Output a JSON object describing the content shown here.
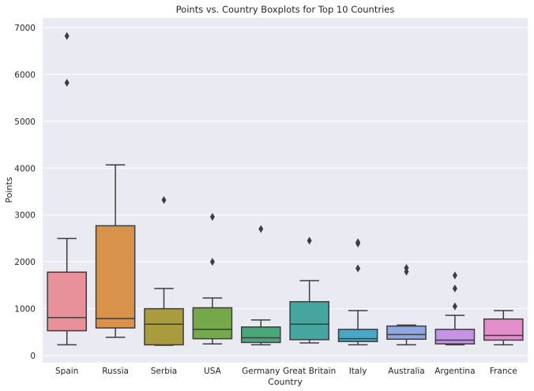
{
  "chart_data": {
    "type": "box",
    "title": "Points vs. Country Boxplots for Top 10 Countries",
    "xlabel": "Country",
    "ylabel": "Points",
    "ylim": [
      -150,
      7200
    ],
    "yticks": [
      0,
      1000,
      2000,
      3000,
      4000,
      5000,
      6000,
      7000
    ],
    "grid": true,
    "categories": [
      "Spain",
      "Russia",
      "Serbia",
      "USA",
      "Germany",
      "Great Britain",
      "Italy",
      "Australia",
      "Argentina",
      "France"
    ],
    "boxes": [
      {
        "category": "Spain",
        "whisker_low": 230,
        "q1": 530,
        "median": 810,
        "q3": 1780,
        "whisker_high": 2500,
        "outliers": [
          5820,
          6820
        ],
        "color": "#e8919b"
      },
      {
        "category": "Russia",
        "whisker_low": 390,
        "q1": 590,
        "median": 790,
        "q3": 2770,
        "whisker_high": 4070,
        "outliers": [],
        "color": "#d8924a"
      },
      {
        "category": "Serbia",
        "whisker_low": 220,
        "q1": 230,
        "median": 670,
        "q3": 1000,
        "whisker_high": 1430,
        "outliers": [
          3320
        ],
        "color": "#aa9c3e"
      },
      {
        "category": "USA",
        "whisker_low": 250,
        "q1": 360,
        "median": 560,
        "q3": 1020,
        "whisker_high": 1230,
        "outliers": [
          2000,
          2960
        ],
        "color": "#74a84b"
      },
      {
        "category": "Germany",
        "whisker_low": 230,
        "q1": 280,
        "median": 380,
        "q3": 610,
        "whisker_high": 760,
        "outliers": [
          2700
        ],
        "color": "#4aa779"
      },
      {
        "category": "Great Britain",
        "whisker_low": 270,
        "q1": 340,
        "median": 670,
        "q3": 1150,
        "whisker_high": 1600,
        "outliers": [
          2450
        ],
        "color": "#47a59f"
      },
      {
        "category": "Italy",
        "whisker_low": 230,
        "q1": 300,
        "median": 360,
        "q3": 560,
        "whisker_high": 960,
        "outliers": [
          1860,
          2390,
          2420
        ],
        "color": "#4aa7c4"
      },
      {
        "category": "Australia",
        "whisker_low": 230,
        "q1": 350,
        "median": 450,
        "q3": 630,
        "whisker_high": 650,
        "outliers": [
          1790,
          1870
        ],
        "color": "#8fa8e3"
      },
      {
        "category": "Argentina",
        "whisker_low": 230,
        "q1": 250,
        "median": 330,
        "q3": 560,
        "whisker_high": 860,
        "outliers": [
          1050,
          1430,
          1710
        ],
        "color": "#c594e2"
      },
      {
        "category": "France",
        "whisker_low": 230,
        "q1": 330,
        "median": 430,
        "q3": 780,
        "whisker_high": 960,
        "outliers": [],
        "color": "#e38fcb"
      }
    ]
  }
}
